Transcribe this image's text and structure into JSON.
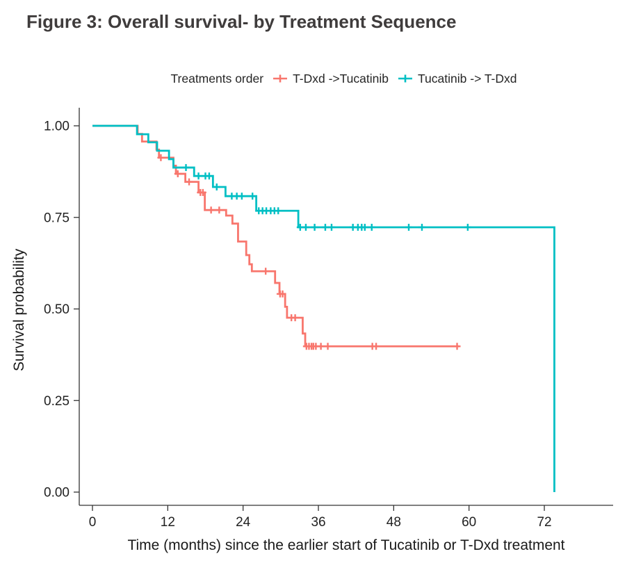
{
  "figure": {
    "title": "Figure 3: Overall survival- by Treatment Sequence"
  },
  "legend": {
    "title": "Treatments order",
    "items": [
      {
        "label": "T-Dxd ->Tucatinib",
        "color": "#F8766D",
        "marker": "plus-icon"
      },
      {
        "label": "Tucatinib -> T-Dxd",
        "color": "#00BFC4",
        "marker": "plus-icon"
      }
    ]
  },
  "chart_data": {
    "type": "line",
    "subtype": "kaplan-meier-step",
    "title": "Figure 3: Overall survival- by Treatment Sequence",
    "xlabel": "Time (months) since the earlier start of Tucatinib or T-Dxd treatment",
    "ylabel": "Survival probability",
    "xlim": [
      0,
      83
    ],
    "ylim": [
      0,
      1.0
    ],
    "x_ticks": [
      0,
      12,
      24,
      36,
      48,
      60,
      72
    ],
    "y_ticks": [
      "1.00",
      "0.75",
      "0.50",
      "0.25",
      "0.00"
    ],
    "y_tick_values": [
      1.0,
      0.75,
      0.5,
      0.25,
      0.0
    ],
    "grid": false,
    "legend_position": "top",
    "series": [
      {
        "name": "T-Dxd ->Tucatinib",
        "color": "#F8766D",
        "start": [
          0,
          1.0
        ],
        "steps": [
          [
            7.2,
            0.978
          ],
          [
            7.9,
            0.957
          ],
          [
            10.2,
            0.935
          ],
          [
            10.6,
            0.913
          ],
          [
            12.9,
            0.891
          ],
          [
            13.3,
            0.869
          ],
          [
            14.8,
            0.847
          ],
          [
            16.9,
            0.818
          ],
          [
            17.9,
            0.77
          ],
          [
            21.3,
            0.755
          ],
          [
            22.3,
            0.733
          ],
          [
            23.2,
            0.684
          ],
          [
            24.5,
            0.647
          ],
          [
            25.0,
            0.622
          ],
          [
            25.4,
            0.603
          ],
          [
            29.1,
            0.571
          ],
          [
            29.8,
            0.541
          ],
          [
            30.7,
            0.506
          ],
          [
            31.0,
            0.476
          ],
          [
            33.5,
            0.433
          ],
          [
            33.9,
            0.398
          ]
        ],
        "end_month": 58.4,
        "censor_marks": [
          [
            10.9,
            0.913
          ],
          [
            13.6,
            0.869
          ],
          [
            15.4,
            0.847
          ],
          [
            17.2,
            0.818
          ],
          [
            17.6,
            0.818
          ],
          [
            18.9,
            0.77
          ],
          [
            20.2,
            0.77
          ],
          [
            27.6,
            0.603
          ],
          [
            29.9,
            0.541
          ],
          [
            30.3,
            0.541
          ],
          [
            31.7,
            0.476
          ],
          [
            32.3,
            0.476
          ],
          [
            34.1,
            0.398
          ],
          [
            34.5,
            0.398
          ],
          [
            34.9,
            0.398
          ],
          [
            35.2,
            0.398
          ],
          [
            35.6,
            0.398
          ],
          [
            36.4,
            0.398
          ],
          [
            37.5,
            0.398
          ],
          [
            44.6,
            0.398
          ],
          [
            45.2,
            0.398
          ],
          [
            58.1,
            0.398
          ]
        ]
      },
      {
        "name": "Tucatinib -> T-Dxd",
        "color": "#00BFC4",
        "start": [
          0,
          1.0
        ],
        "steps": [
          [
            7.1,
            0.977
          ],
          [
            8.9,
            0.955
          ],
          [
            10.3,
            0.932
          ],
          [
            12.2,
            0.909
          ],
          [
            12.9,
            0.886
          ],
          [
            16.2,
            0.863
          ],
          [
            19.2,
            0.833
          ],
          [
            21.2,
            0.808
          ],
          [
            26.1,
            0.768
          ],
          [
            32.8,
            0.723
          ],
          [
            73.6,
            0.0
          ]
        ],
        "end_month": 73.6,
        "censor_marks": [
          [
            14.9,
            0.886
          ],
          [
            16.9,
            0.863
          ],
          [
            18.0,
            0.863
          ],
          [
            18.6,
            0.863
          ],
          [
            19.8,
            0.833
          ],
          [
            22.2,
            0.808
          ],
          [
            23.0,
            0.808
          ],
          [
            23.8,
            0.808
          ],
          [
            25.5,
            0.808
          ],
          [
            26.5,
            0.768
          ],
          [
            27.1,
            0.768
          ],
          [
            27.7,
            0.768
          ],
          [
            28.4,
            0.768
          ],
          [
            29.0,
            0.768
          ],
          [
            29.6,
            0.768
          ],
          [
            33.1,
            0.723
          ],
          [
            34.0,
            0.723
          ],
          [
            35.4,
            0.723
          ],
          [
            37.1,
            0.723
          ],
          [
            38.1,
            0.723
          ],
          [
            41.5,
            0.723
          ],
          [
            42.3,
            0.723
          ],
          [
            42.9,
            0.723
          ],
          [
            43.4,
            0.723
          ],
          [
            44.5,
            0.723
          ],
          [
            50.4,
            0.723
          ],
          [
            52.5,
            0.723
          ],
          [
            59.8,
            0.723
          ]
        ]
      }
    ]
  }
}
